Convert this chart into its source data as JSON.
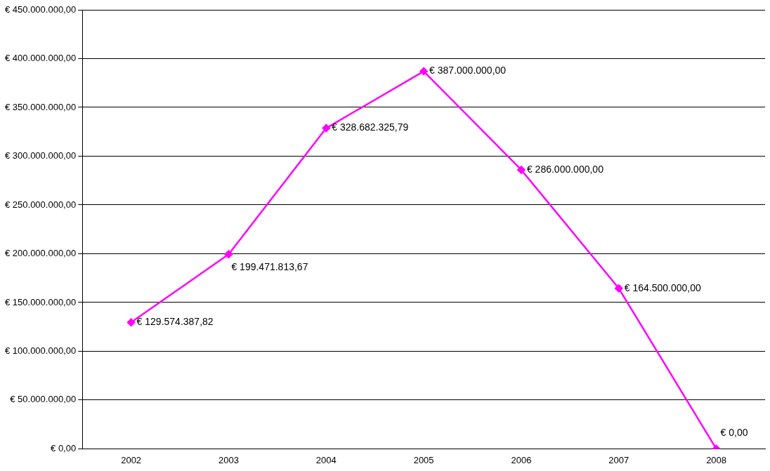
{
  "chart_data": {
    "type": "line",
    "categories": [
      "2002",
      "2003",
      "2004",
      "2005",
      "2006",
      "2007",
      "2008"
    ],
    "series": [
      {
        "color": "#ff00ff",
        "values": [
          129574387.82,
          199471813.67,
          328682325.79,
          387000000,
          286000000,
          164500000,
          0
        ],
        "value_labels": [
          "€ 129.574.387,82",
          "€ 199.471.813,67",
          "€ 328.682.325,79",
          "€ 387.000.000,00",
          "€ 286.000.000,00",
          "€ 164.500.000,00",
          "€ 0,00"
        ]
      }
    ],
    "ylim": [
      0,
      450000000
    ],
    "yticks": [
      {
        "value": 0,
        "label": "€ 0,00"
      },
      {
        "value": 50000000,
        "label": "€ 50.000.000,00"
      },
      {
        "value": 100000000,
        "label": "€ 100.000.000,00"
      },
      {
        "value": 150000000,
        "label": "€ 150.000.000,00"
      },
      {
        "value": 200000000,
        "label": "€ 200.000.000,00"
      },
      {
        "value": 250000000,
        "label": "€ 250.000.000,00"
      },
      {
        "value": 300000000,
        "label": "€ 300.000.000,00"
      },
      {
        "value": 350000000,
        "label": "€ 350.000.000,00"
      },
      {
        "value": 400000000,
        "label": "€ 400.000.000,00"
      },
      {
        "value": 450000000,
        "label": "€ 450.000.000,00"
      }
    ],
    "grid": "y",
    "legend": false,
    "marker": "diamond",
    "line_style": "solid"
  }
}
